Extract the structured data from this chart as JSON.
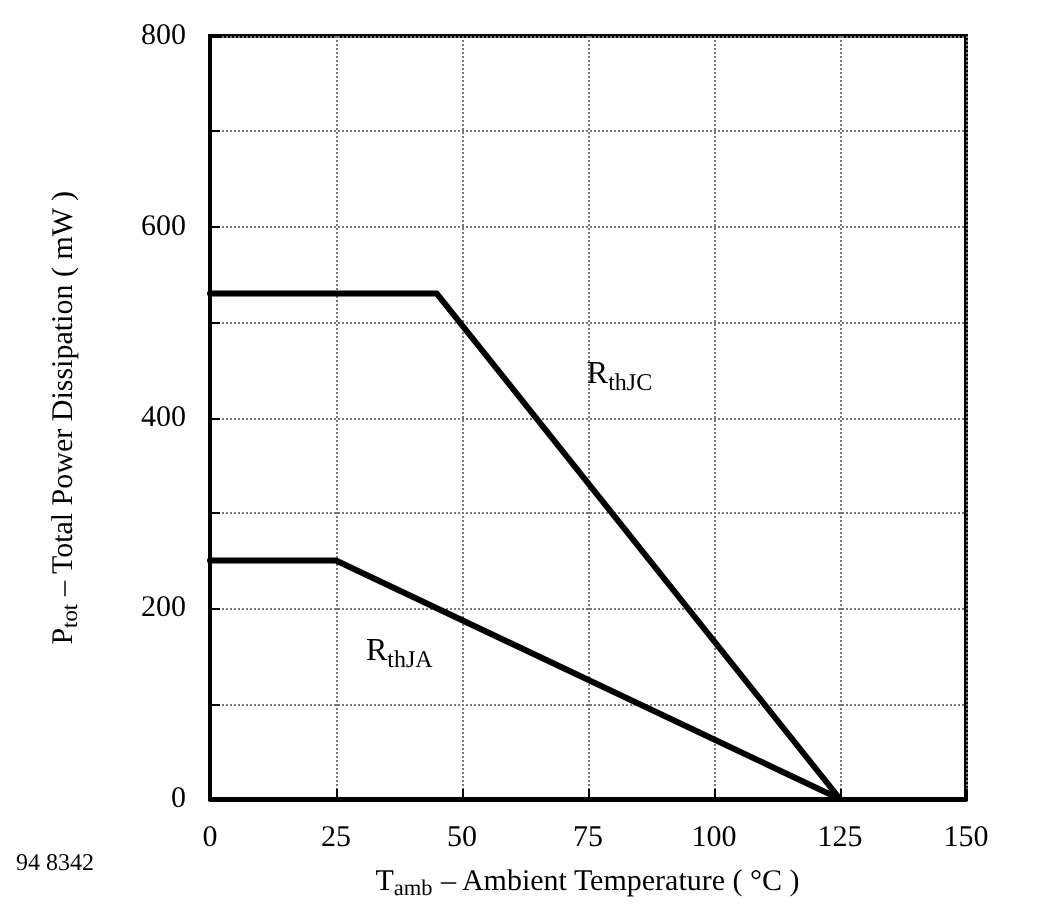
{
  "chart_data": {
    "type": "line",
    "xlabel": "T$_{amb}$ – Ambient Temperature ( °C )",
    "ylabel": "P$_{tot}$ – Total Power Dissipation ( mW )",
    "annotations": [
      "94 8342"
    ],
    "series": [
      {
        "name": "R$_{thJC}$",
        "color": "#000000",
        "x": [
          0,
          45,
          125
        ],
        "values": [
          530,
          530,
          0
        ]
      },
      {
        "name": "R$_{thJA}$",
        "color": "#000000",
        "x": [
          0,
          25,
          125
        ],
        "values": [
          250,
          250,
          0
        ]
      }
    ],
    "xlim": [
      0,
      150
    ],
    "xticks": [
      0,
      25,
      50,
      75,
      100,
      125,
      150
    ],
    "ylim": [
      0,
      800
    ],
    "yticks": [
      0,
      {
        "value": 100,
        "label": null
      },
      200,
      {
        "value": 300,
        "label": null
      },
      400,
      {
        "value": 500,
        "label": null
      },
      600,
      {
        "value": 700,
        "label": null
      },
      800
    ],
    "grid": true,
    "marker": "none",
    "line_style": "solid"
  }
}
